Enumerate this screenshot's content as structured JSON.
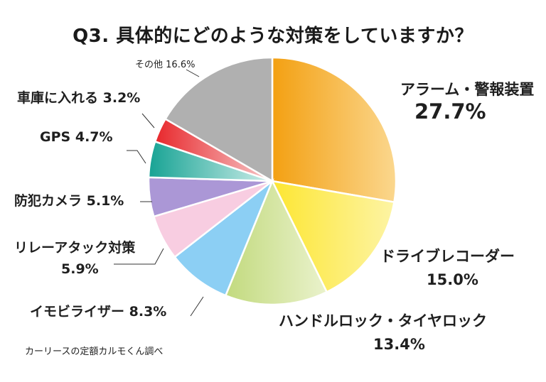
{
  "chart_data": {
    "type": "pie",
    "title": "Q3. 具体的にどのような対策をしていますか？",
    "source": "カーリースの定額カルモくん調べ",
    "slices": [
      {
        "label": "アラーム・警報装置",
        "value": 27.7,
        "pct": "27.7%",
        "color_start": "#f3a012",
        "color_end": "#fbd78e"
      },
      {
        "label": "ドライブレコーダー",
        "value": 15.0,
        "pct": "15.0%",
        "color_start": "#fde632",
        "color_end": "#fdf4a4"
      },
      {
        "label": "ハンドルロック・タイヤロック",
        "value": 13.4,
        "pct": "13.4%",
        "color_start": "#c2da7e",
        "color_end": "#eaf2cc"
      },
      {
        "label": "イモビライザー",
        "value": 8.3,
        "pct": "8.3%",
        "color_start": "#8ccff4",
        "color_end": "#8ccff4"
      },
      {
        "label": "リレーアタック対策",
        "value": 5.9,
        "pct": "5.9%",
        "color_start": "#f8cde1",
        "color_end": "#f8cde1"
      },
      {
        "label": "防犯カメラ",
        "value": 5.1,
        "pct": "5.1%",
        "color_start": "#ab97d6",
        "color_end": "#ab97d6"
      },
      {
        "label": "GPS",
        "value": 4.7,
        "pct": "4.7%",
        "color_start": "#17a394",
        "color_end": "#cfeeea"
      },
      {
        "label": "車庫に入れる",
        "value": 3.2,
        "pct": "3.2%",
        "color_start": "#e8282c",
        "color_end": "#f7c9ca"
      },
      {
        "label": "その他",
        "value": 16.6,
        "pct": "16.6%",
        "color_start": "#b0b0b0",
        "color_end": "#b0b0b0"
      }
    ]
  }
}
